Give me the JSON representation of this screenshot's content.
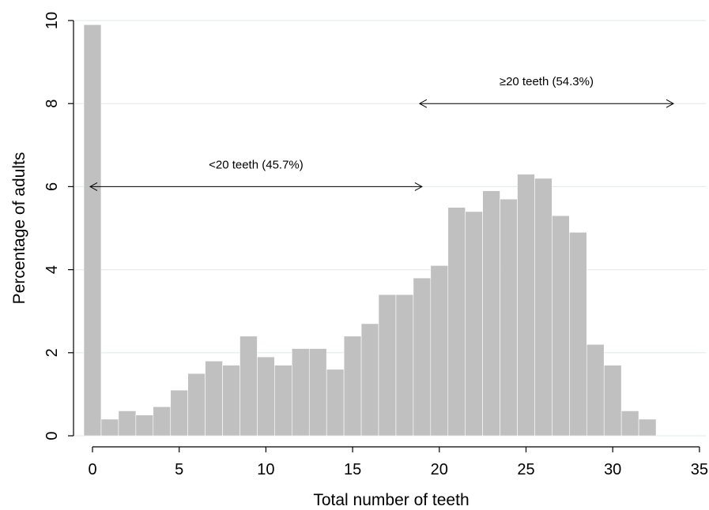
{
  "chart_data": {
    "type": "bar",
    "title": "",
    "xlabel": "Total number of teeth",
    "ylabel": "Percentage of adults",
    "xlim": [
      -1,
      36
    ],
    "ylim": [
      0,
      10
    ],
    "grid": true,
    "bar_color": "#c0c0c0",
    "grid_color": "#e4ecec",
    "x": [
      0,
      1,
      2,
      3,
      4,
      5,
      6,
      7,
      8,
      9,
      10,
      11,
      12,
      13,
      14,
      15,
      16,
      17,
      18,
      19,
      20,
      21,
      22,
      23,
      24,
      25,
      26,
      27,
      28,
      29,
      30,
      31,
      32
    ],
    "values": [
      9.9,
      0.4,
      0.6,
      0.5,
      0.7,
      1.1,
      1.5,
      1.8,
      1.7,
      2.4,
      1.9,
      1.7,
      2.1,
      2.1,
      1.6,
      2.4,
      2.7,
      3.4,
      3.4,
      3.8,
      4.1,
      5.5,
      5.4,
      5.9,
      5.7,
      6.3,
      6.2,
      5.3,
      4.9,
      2.2,
      1.7,
      0.6,
      0.4
    ],
    "x_ticks": [
      "0",
      "5",
      "10",
      "15",
      "20",
      "25",
      "30",
      "35"
    ],
    "y_ticks": [
      "0",
      "2",
      "4",
      "6",
      "8",
      "10"
    ],
    "annotations": [
      {
        "text": "<20 teeth (45.7%)",
        "y": 6.0,
        "x_from": 0,
        "x_to": 19
      },
      {
        "text": "≥20 teeth (54.3%)",
        "y": 8.0,
        "x_from": 19,
        "x_to": 33.5
      }
    ]
  }
}
